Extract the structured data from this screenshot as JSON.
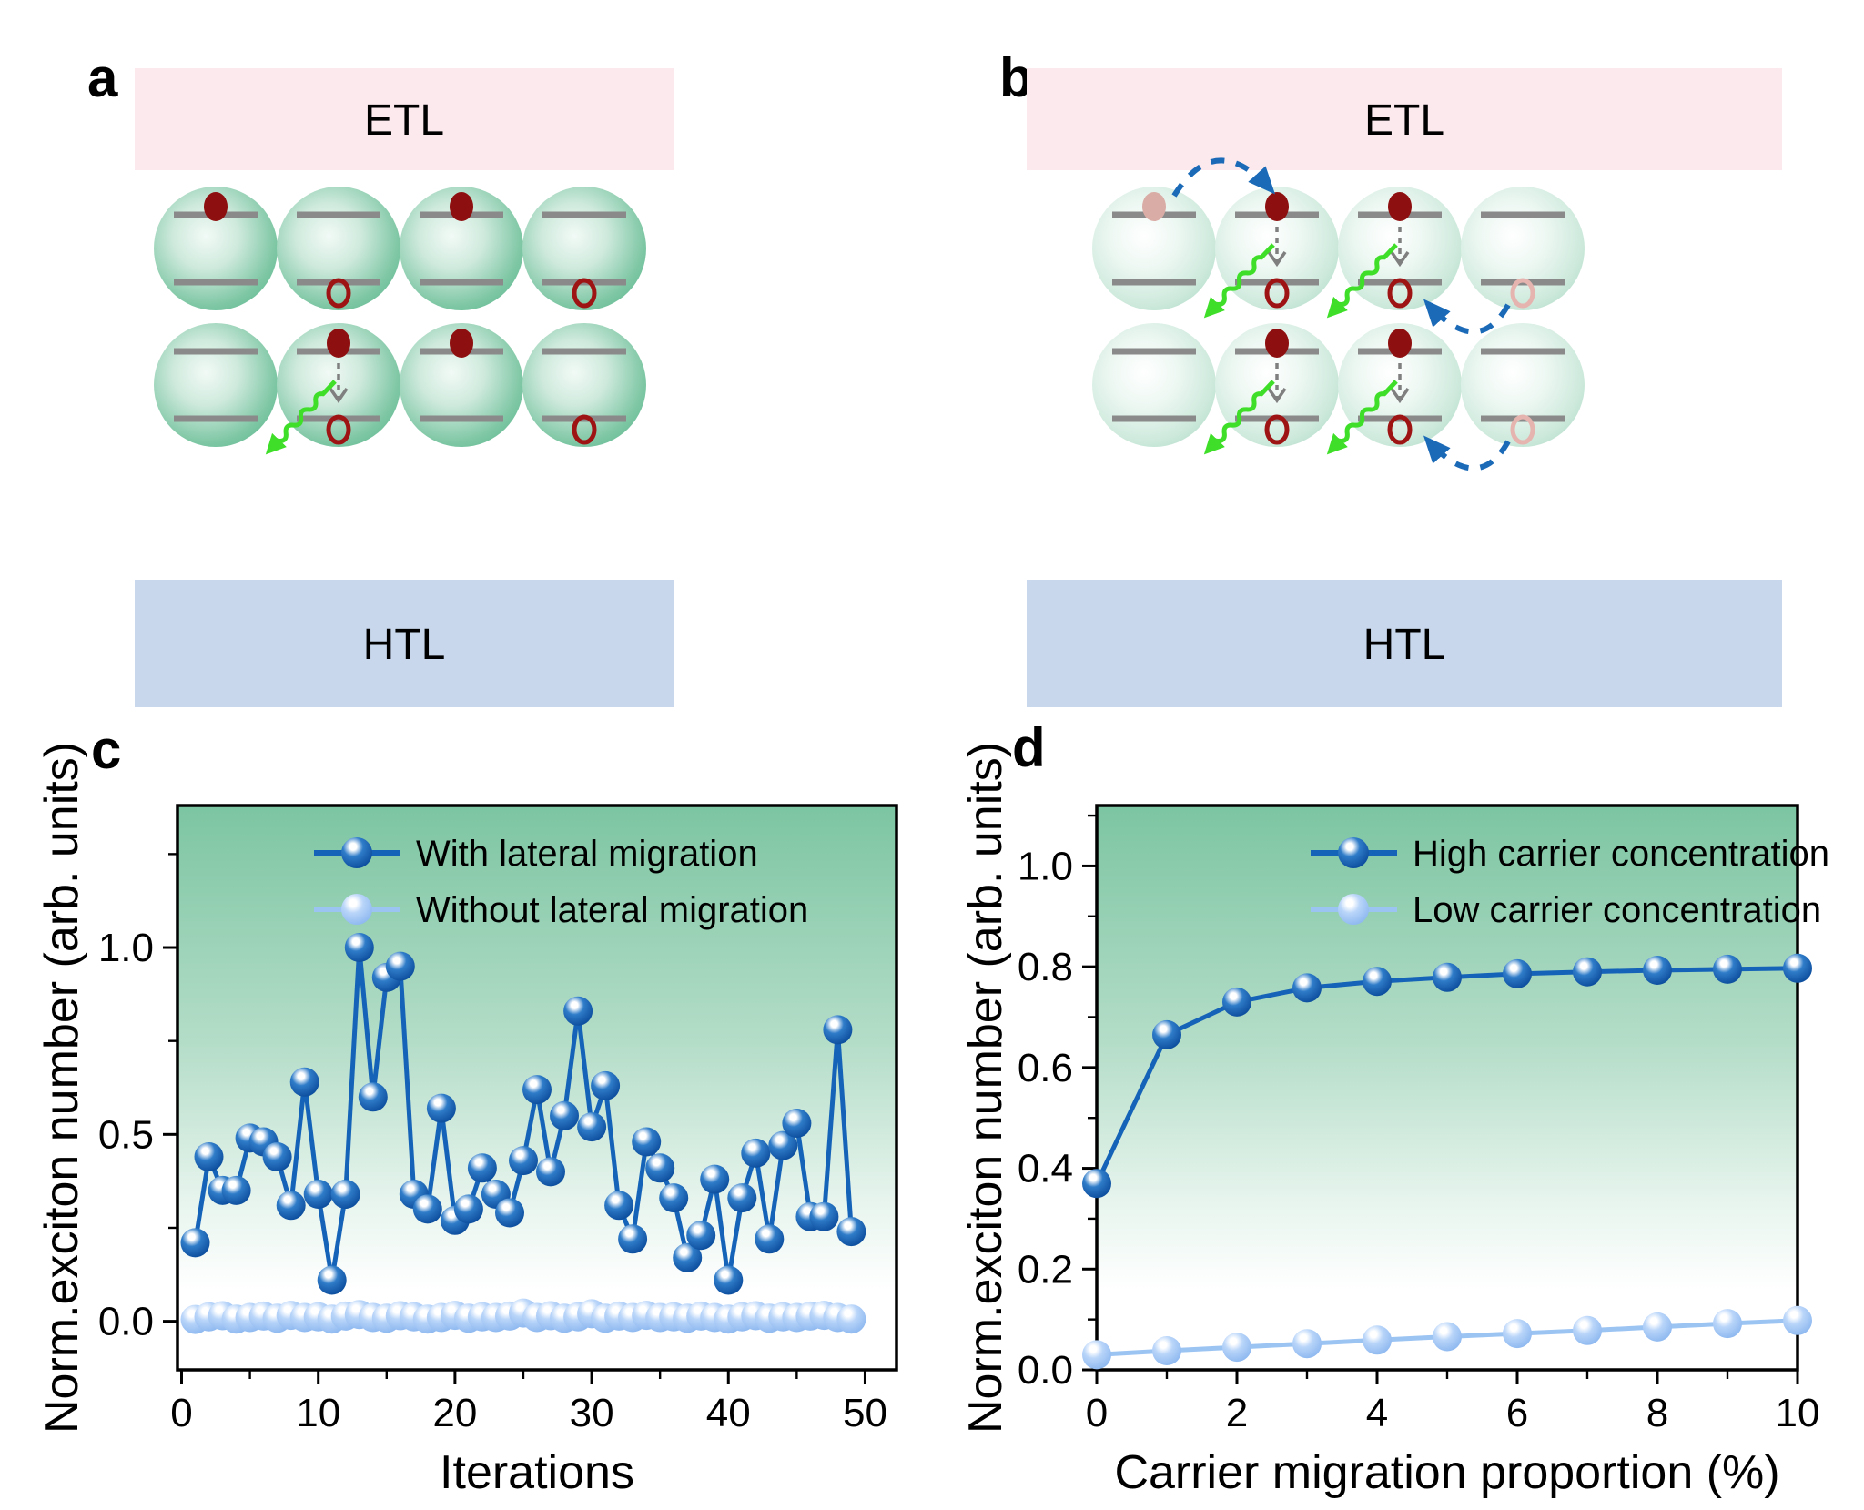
{
  "figure": {
    "panels": [
      {
        "id": "a",
        "label": "a"
      },
      {
        "id": "b",
        "label": "b"
      },
      {
        "id": "c",
        "label": "c"
      },
      {
        "id": "d",
        "label": "d"
      }
    ]
  },
  "colors": {
    "etl_bar": "#fce9ee",
    "htl_bar": "#c8d7ec",
    "bar_text": "#000000",
    "level": "#8a8a8a",
    "electron": "#8e0f0f",
    "hole": "#9e1414",
    "electron_faded": "#d9aca6",
    "hole_faded": "#e6b4af",
    "photon_arrow": "#3fdf29",
    "recombination_arrow": "#7f7f7f",
    "migration_arrow": "#1a6ab8",
    "plot_border": "#000000",
    "dot_dark": [
      "#f2faf6",
      "#cfeadd",
      "#7fc7a5",
      "#5eb890"
    ],
    "dot_light": [
      "#ffffff",
      "#eef8f3",
      "#cde9dc",
      "#aedcc6"
    ]
  },
  "diagrams": [
    {
      "id": "a",
      "etl_label": "ETL",
      "htl_label": "HTL",
      "dot_style": "dark",
      "rows": [
        [
          "e",
          "h",
          "e",
          "h"
        ],
        [
          "",
          "x",
          "e",
          "h"
        ]
      ],
      "arrows": []
    },
    {
      "id": "b",
      "etl_label": "ETL",
      "htl_label": "HTL",
      "dot_style": "light",
      "rows": [
        [
          "ef",
          "x",
          "x",
          "hf"
        ],
        [
          "",
          "x",
          "x",
          "hf"
        ]
      ],
      "arrows": [
        {
          "kind": "electron",
          "row": 0,
          "from": 0,
          "to": 1
        },
        {
          "kind": "hole",
          "row": 0,
          "from": 3,
          "to": 2
        },
        {
          "kind": "hole",
          "row": 1,
          "from": 3,
          "to": 2
        }
      ]
    }
  ],
  "chart_data": [
    {
      "id": "c",
      "type": "line",
      "title": "",
      "xlabel": "Iterations",
      "ylabel": "Norm.exciton number (arb. units)",
      "xlim": [
        -0.3,
        52.3
      ],
      "ylim": [
        -0.13,
        1.38
      ],
      "xticks": [
        0,
        10,
        20,
        30,
        40,
        50
      ],
      "xminor": [
        5,
        15,
        25,
        35,
        45
      ],
      "yticks": [
        0,
        0.5,
        1.0
      ],
      "ytick_labels": [
        "0.0",
        "0.5",
        "1.0"
      ],
      "yminor": [
        0.25,
        0.75,
        1.25
      ],
      "grid": false,
      "legend_position": "top-inside",
      "background": {
        "stops": [
          [
            "0%",
            "#7cc5a2"
          ],
          [
            "42%",
            "#b4ddc8"
          ],
          [
            "72%",
            "#eaf6f0"
          ],
          [
            "86%",
            "#ffffff"
          ],
          [
            "100%",
            "#ffffff"
          ]
        ]
      },
      "series": [
        {
          "name": "With lateral migration",
          "line_color": "#1563b8",
          "marker_colors": [
            "#ffffff",
            "#2f7cc9",
            "#0d4e9e"
          ],
          "x": [
            1,
            2,
            3,
            4,
            5,
            6,
            7,
            8,
            9,
            10,
            11,
            12,
            13,
            14,
            15,
            16,
            17,
            18,
            19,
            20,
            21,
            22,
            23,
            24,
            25,
            26,
            27,
            28,
            29,
            30,
            31,
            32,
            33,
            34,
            35,
            36,
            37,
            38,
            39,
            40,
            41,
            42,
            43,
            44,
            45,
            46,
            47,
            48,
            49
          ],
          "y": [
            0.21,
            0.44,
            0.35,
            0.35,
            0.49,
            0.48,
            0.44,
            0.31,
            0.64,
            0.34,
            0.11,
            0.34,
            1.0,
            0.6,
            0.92,
            0.95,
            0.34,
            0.3,
            0.57,
            0.27,
            0.3,
            0.41,
            0.34,
            0.29,
            0.43,
            0.62,
            0.4,
            0.55,
            0.83,
            0.52,
            0.63,
            0.31,
            0.22,
            0.48,
            0.41,
            0.33,
            0.17,
            0.23,
            0.38,
            0.11,
            0.33,
            0.45,
            0.22,
            0.47,
            0.53,
            0.28,
            0.28,
            0.78,
            0.24
          ]
        },
        {
          "name": "Without lateral migration",
          "line_color": "#9cc4f3",
          "marker_colors": [
            "#ffffff",
            "#b9d5f9",
            "#8fb9f0"
          ],
          "x": [
            1,
            2,
            3,
            4,
            5,
            6,
            7,
            8,
            9,
            10,
            11,
            12,
            13,
            14,
            15,
            16,
            17,
            18,
            19,
            20,
            21,
            22,
            23,
            24,
            25,
            26,
            27,
            28,
            29,
            30,
            31,
            32,
            33,
            34,
            35,
            36,
            37,
            38,
            39,
            40,
            41,
            42,
            43,
            44,
            45,
            46,
            47,
            48,
            49
          ],
          "y": [
            0.005,
            0.012,
            0.015,
            0.006,
            0.01,
            0.014,
            0.008,
            0.016,
            0.01,
            0.012,
            0.006,
            0.014,
            0.018,
            0.01,
            0.008,
            0.015,
            0.012,
            0.006,
            0.01,
            0.016,
            0.008,
            0.012,
            0.01,
            0.014,
            0.022,
            0.01,
            0.015,
            0.008,
            0.012,
            0.02,
            0.008,
            0.014,
            0.01,
            0.016,
            0.01,
            0.012,
            0.008,
            0.014,
            0.01,
            0.006,
            0.012,
            0.015,
            0.008,
            0.012,
            0.01,
            0.014,
            0.016,
            0.01,
            0.006
          ]
        }
      ]
    },
    {
      "id": "d",
      "type": "line",
      "title": "",
      "xlabel": "Carrier migration proportion (%)",
      "ylabel": "Norm.exciton number (arb. units)",
      "xlim": [
        0,
        10
      ],
      "ylim": [
        0,
        1.12
      ],
      "xticks": [
        0,
        2,
        4,
        6,
        8,
        10
      ],
      "xminor": [
        1,
        3,
        5,
        7,
        9
      ],
      "yticks": [
        0,
        0.2,
        0.4,
        0.6,
        0.8,
        1.0
      ],
      "ytick_labels": [
        "0.0",
        "0.2",
        "0.4",
        "0.6",
        "0.8",
        "1.0"
      ],
      "yminor": [
        0.1,
        0.3,
        0.5,
        0.7,
        0.9,
        1.1
      ],
      "grid": false,
      "legend_position": "top-inside",
      "background": {
        "stops": [
          [
            "0%",
            "#7cc5a2"
          ],
          [
            "42%",
            "#b4ddc8"
          ],
          [
            "72%",
            "#eaf6f0"
          ],
          [
            "86%",
            "#ffffff"
          ],
          [
            "100%",
            "#ffffff"
          ]
        ]
      },
      "series": [
        {
          "name": "High carrier concentration",
          "line_color": "#1563b8",
          "marker_colors": [
            "#ffffff",
            "#2f7cc9",
            "#0d4e9e"
          ],
          "x": [
            0,
            1,
            2,
            3,
            4,
            5,
            6,
            7,
            8,
            9,
            10
          ],
          "y": [
            0.37,
            0.665,
            0.73,
            0.758,
            0.771,
            0.779,
            0.786,
            0.79,
            0.793,
            0.795,
            0.797
          ]
        },
        {
          "name": "Low carrier concentration",
          "line_color": "#9cc4f3",
          "marker_colors": [
            "#ffffff",
            "#b9d5f9",
            "#8fb9f0"
          ],
          "x": [
            0,
            1,
            2,
            3,
            4,
            5,
            6,
            7,
            8,
            9,
            10
          ],
          "y": [
            0.03,
            0.038,
            0.045,
            0.052,
            0.059,
            0.066,
            0.072,
            0.078,
            0.085,
            0.092,
            0.098
          ]
        }
      ]
    }
  ]
}
